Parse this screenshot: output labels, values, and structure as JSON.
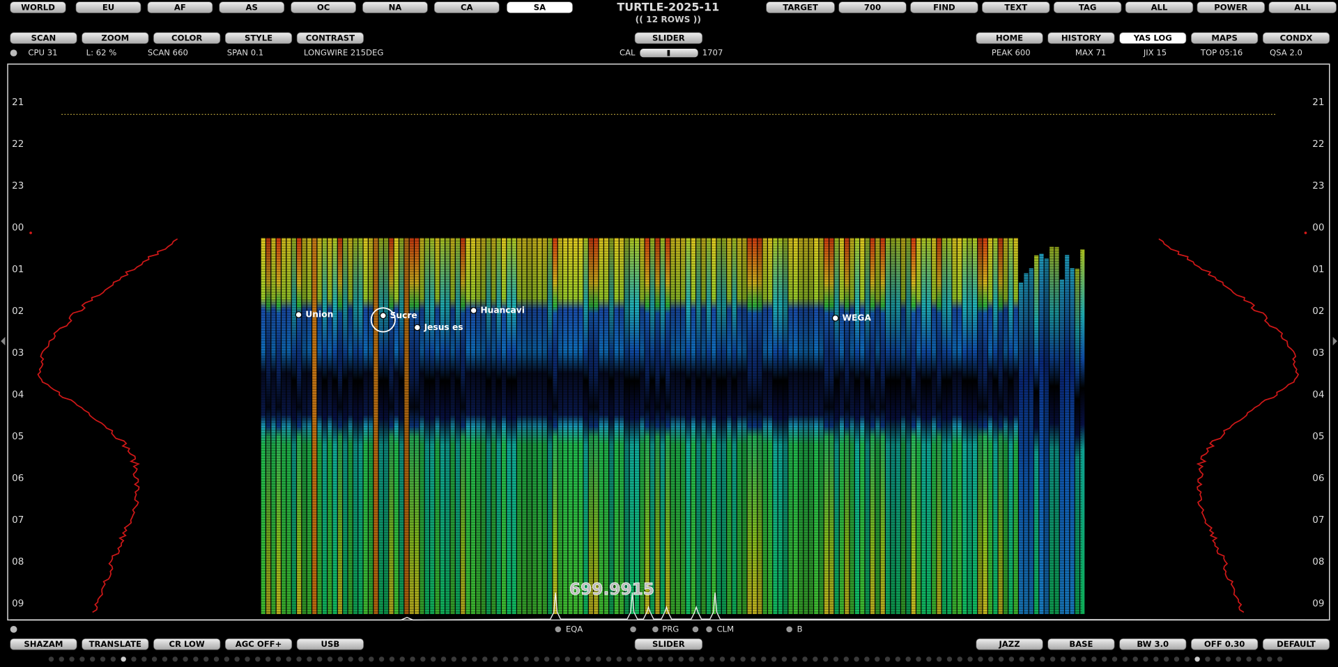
{
  "header": {
    "title": "TURTLE-2025-11",
    "subtitle": "(( 12 ROWS ))"
  },
  "nav": {
    "regions": [
      "WORLD",
      "EU",
      "AF",
      "AS",
      "OC",
      "NA",
      "CA",
      "SA"
    ],
    "tools": [
      "TARGET",
      "700",
      "FIND",
      "TEXT",
      "TAG",
      "ALL",
      "POWER",
      "ALL"
    ]
  },
  "toolbar": {
    "left": [
      "SCAN",
      "ZOOM",
      "COLOR",
      "STYLE",
      "CONTRAST"
    ],
    "center": "SLIDER",
    "right": [
      "HOME",
      "HISTORY",
      "YAS LOG",
      "MAPS",
      "CONDX"
    ]
  },
  "status": {
    "left": [
      "CPU 31",
      "L: 62 %",
      "SCAN 660",
      "SPAN 0.1",
      "LONGWIRE 215DEG"
    ],
    "cal_label": "CAL",
    "cal_value": "1707",
    "right": [
      "PEAK 600",
      "MAX 71",
      "JIX 15",
      "TOP 05:16",
      "QSA 2.0"
    ]
  },
  "waterfall": {
    "rows": [
      "21",
      "22",
      "23",
      "00",
      "01",
      "02",
      "03",
      "04",
      "05",
      "06",
      "07",
      "08",
      "09"
    ],
    "stations": [
      "Union",
      "Sucre",
      "Jesus es",
      "Huancavi",
      "WEGA"
    ],
    "frequency": "699.9915",
    "markers": [
      "EQA",
      "PRG",
      "CLM",
      "B"
    ]
  },
  "footer": {
    "left": [
      "SHAZAM",
      "TRANSLATE",
      "CR LOW",
      "AGC OFF+",
      "USB"
    ],
    "center": "SLIDER",
    "right": [
      "JAZZ",
      "BASE",
      "BW 3.0",
      "OFF 0.30",
      "DEFAULT"
    ]
  }
}
